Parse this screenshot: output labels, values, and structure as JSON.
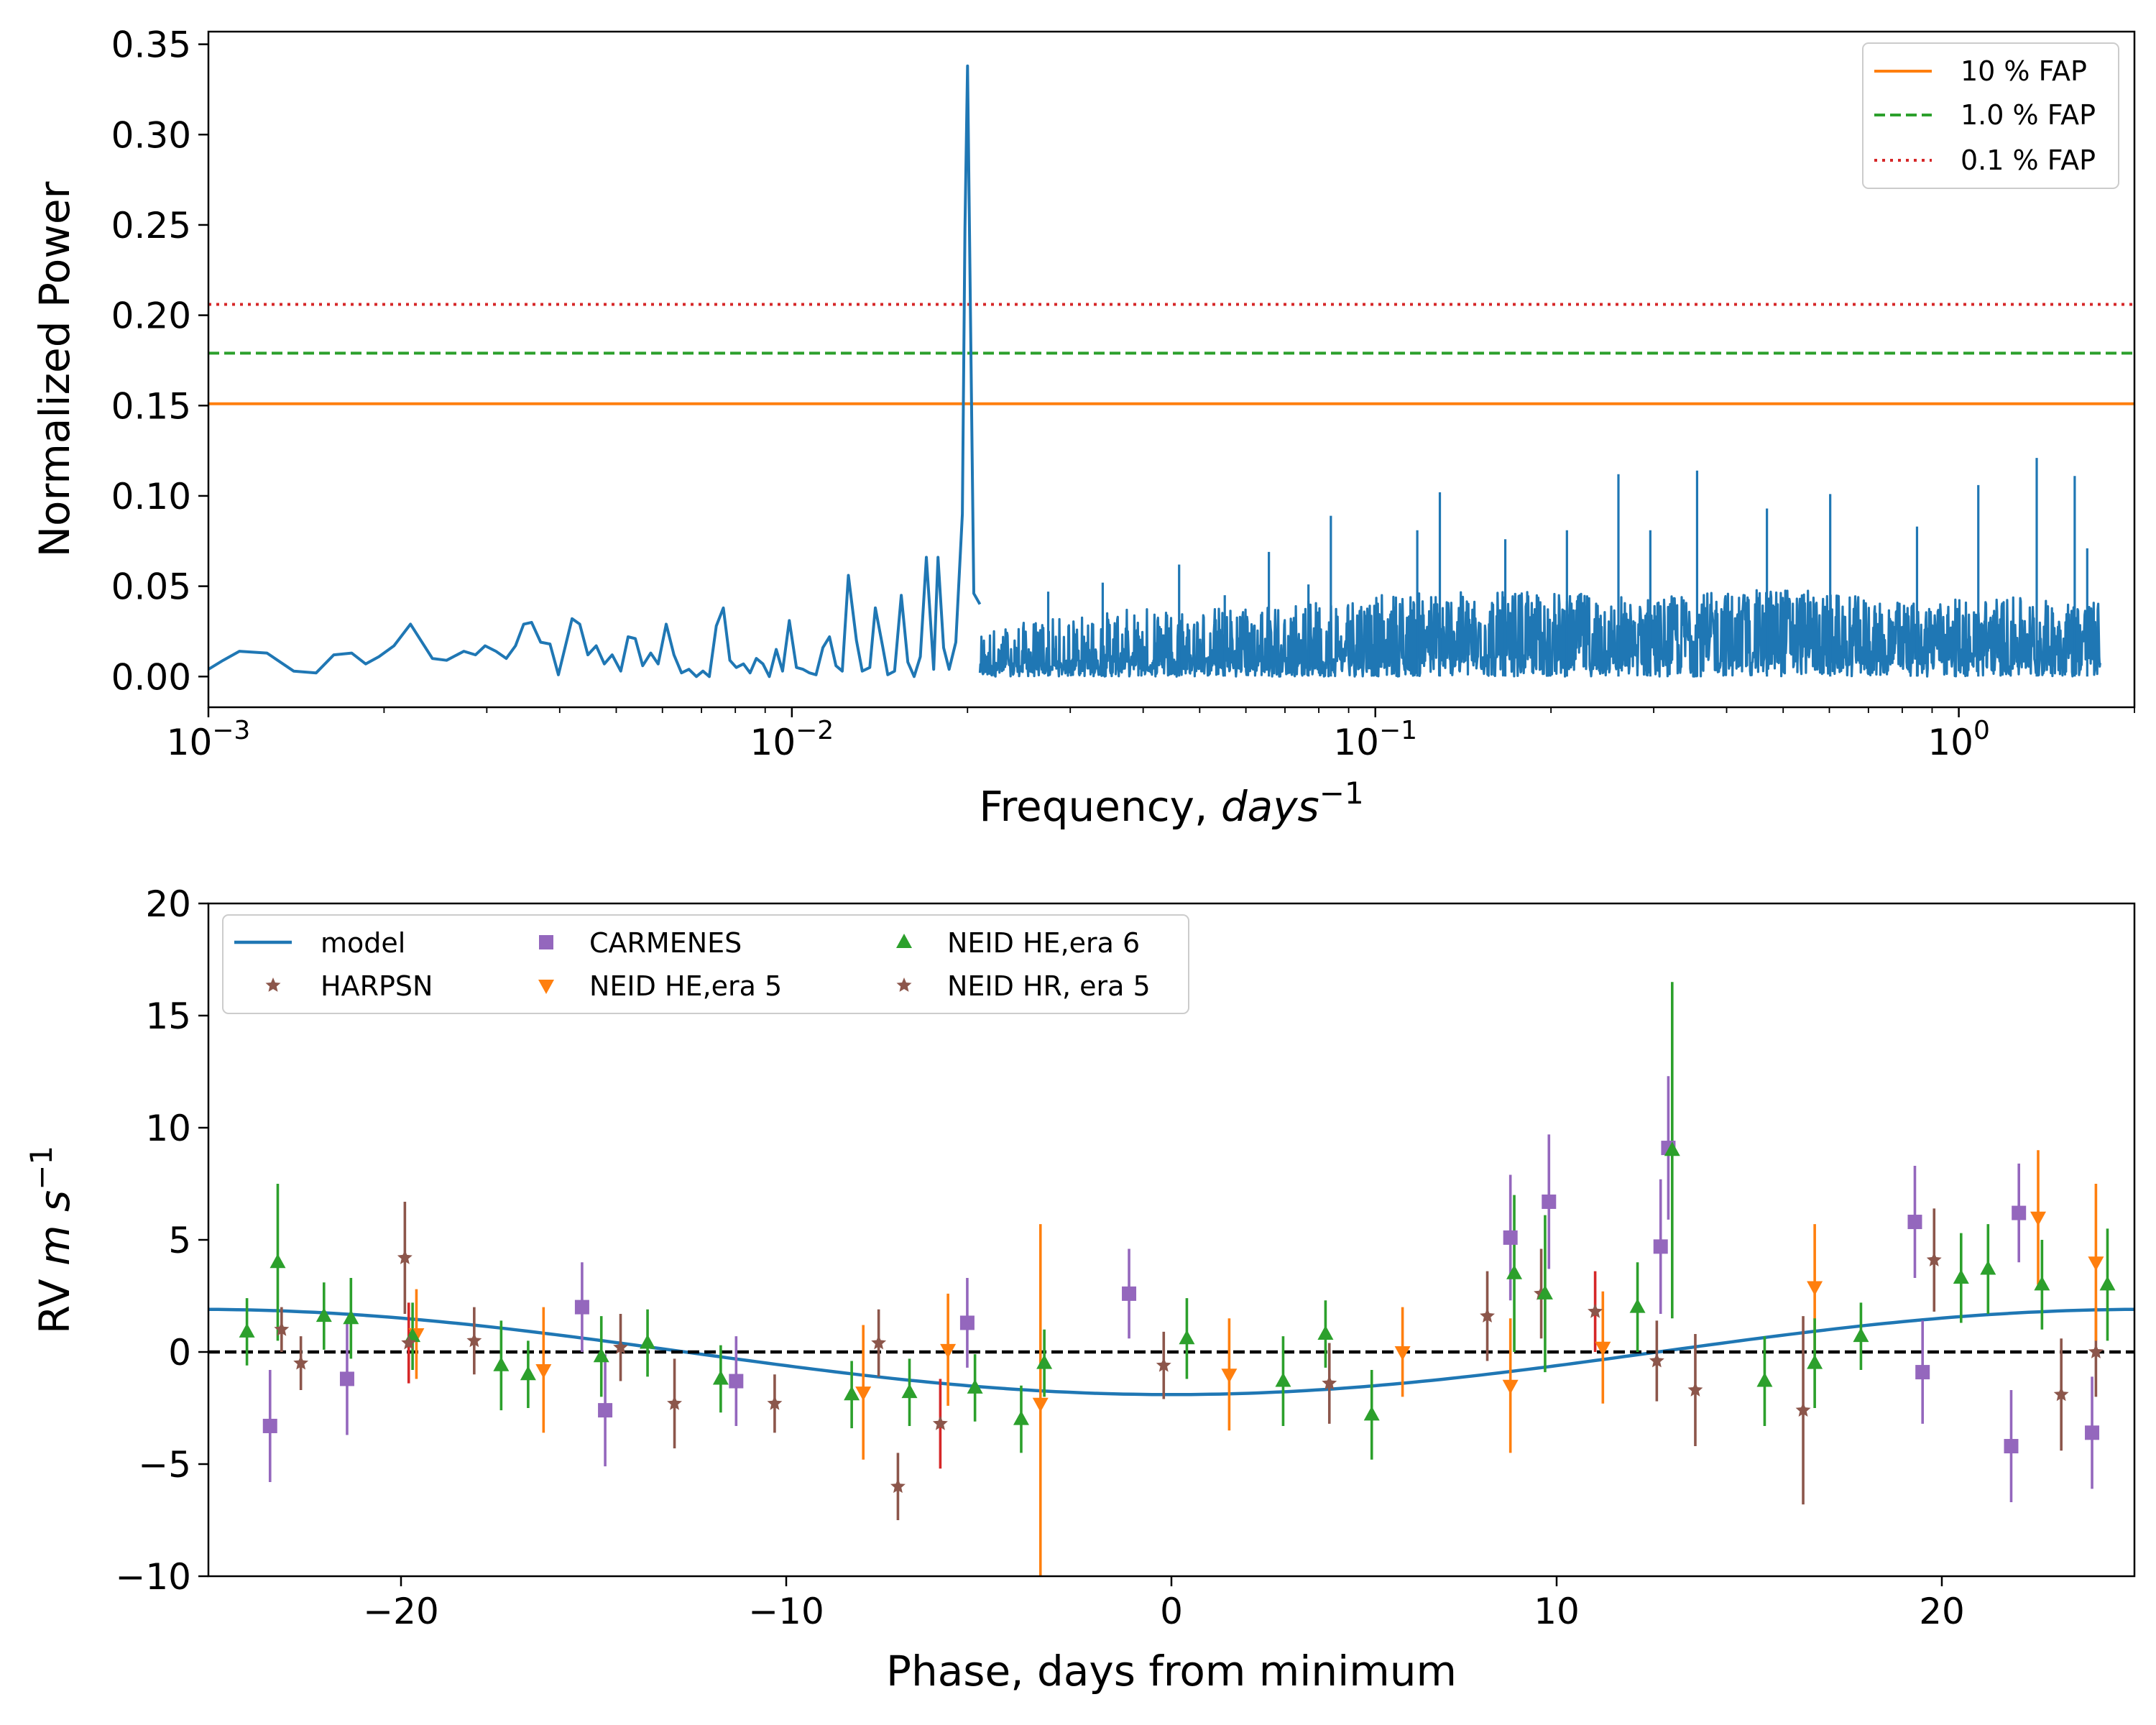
{
  "chart_data": [
    {
      "type": "line",
      "xscale": "log",
      "xlabel_text": "Frequency, ",
      "xlabel_var": "days",
      "xlabel_sup": "−1",
      "ylabel": "Normalized Power",
      "xlim": [
        0.001,
        2.0
      ],
      "ylim": [
        -0.017,
        0.357
      ],
      "xticks": [
        {
          "value": 0.001,
          "base": "10",
          "exp": "−3"
        },
        {
          "value": 0.01,
          "base": "10",
          "exp": "−2"
        },
        {
          "value": 0.1,
          "base": "10",
          "exp": "−1"
        },
        {
          "value": 1,
          "base": "10",
          "exp": "0"
        }
      ],
      "yticks": [
        {
          "value": 0.0,
          "label": "0.00"
        },
        {
          "value": 0.05,
          "label": "0.05"
        },
        {
          "value": 0.1,
          "label": "0.10"
        },
        {
          "value": 0.15,
          "label": "0.15"
        },
        {
          "value": 0.2,
          "label": "0.20"
        },
        {
          "value": 0.25,
          "label": "0.25"
        },
        {
          "value": 0.3,
          "label": "0.30"
        },
        {
          "value": 0.35,
          "label": "0.35"
        }
      ],
      "fap_lines": [
        {
          "name": "10 % FAP",
          "value": 0.151,
          "color": "#ff7f0e",
          "style": "solid"
        },
        {
          "name": "1.0 % FAP",
          "value": 0.179,
          "color": "#2ca02c",
          "style": "dashed"
        },
        {
          "name": "0.1 % FAP",
          "value": 0.206,
          "color": "#d62728",
          "style": "dotted"
        }
      ],
      "legend_position": "top-right",
      "series": [
        {
          "color": "#1f77b4",
          "points": [
            [
              0.001,
              0.004
            ],
            [
              0.00106,
              0.009
            ],
            [
              0.00113,
              0.014
            ],
            [
              0.00126,
              0.013
            ],
            [
              0.0014,
              0.003
            ],
            [
              0.00153,
              0.002
            ],
            [
              0.00164,
              0.012
            ],
            [
              0.00176,
              0.013
            ],
            [
              0.00186,
              0.007
            ],
            [
              0.00196,
              0.011
            ],
            [
              0.00208,
              0.017
            ],
            [
              0.00222,
              0.029
            ],
            [
              0.00242,
              0.01
            ],
            [
              0.00256,
              0.009
            ],
            [
              0.00274,
              0.014
            ],
            [
              0.00287,
              0.012
            ],
            [
              0.00298,
              0.017
            ],
            [
              0.00311,
              0.014
            ],
            [
              0.00324,
              0.01
            ],
            [
              0.00336,
              0.017
            ],
            [
              0.00347,
              0.029
            ],
            [
              0.00358,
              0.03
            ],
            [
              0.00371,
              0.019
            ],
            [
              0.00385,
              0.018
            ],
            [
              0.00398,
              0.001
            ],
            [
              0.0042,
              0.032
            ],
            [
              0.00433,
              0.029
            ],
            [
              0.00447,
              0.012
            ],
            [
              0.00462,
              0.017
            ],
            [
              0.00477,
              0.007
            ],
            [
              0.00492,
              0.012
            ],
            [
              0.00509,
              0.003
            ],
            [
              0.00524,
              0.022
            ],
            [
              0.00539,
              0.021
            ],
            [
              0.00555,
              0.006
            ],
            [
              0.00573,
              0.013
            ],
            [
              0.0059,
              0.007
            ],
            [
              0.00609,
              0.029
            ],
            [
              0.00628,
              0.012
            ],
            [
              0.00647,
              0.002
            ],
            [
              0.00666,
              0.004
            ],
            [
              0.00686,
              0.0
            ],
            [
              0.00704,
              0.003
            ],
            [
              0.00722,
              0.0
            ],
            [
              0.00742,
              0.028
            ],
            [
              0.00763,
              0.038
            ],
            [
              0.00783,
              0.009
            ],
            [
              0.00803,
              0.005
            ],
            [
              0.00826,
              0.007
            ],
            [
              0.00848,
              0.002
            ],
            [
              0.00869,
              0.01
            ],
            [
              0.00892,
              0.007
            ],
            [
              0.00915,
              0.0
            ],
            [
              0.0094,
              0.015
            ],
            [
              0.00964,
              0.003
            ],
            [
              0.0099,
              0.031
            ],
            [
              0.01018,
              0.005
            ],
            [
              0.01045,
              0.004
            ],
            [
              0.01072,
              0.002
            ],
            [
              0.011,
              0.001
            ],
            [
              0.0113,
              0.016
            ],
            [
              0.0116,
              0.022
            ],
            [
              0.0119,
              0.006
            ],
            [
              0.0122,
              0.003
            ],
            [
              0.0125,
              0.056
            ],
            [
              0.0129,
              0.02
            ],
            [
              0.0132,
              0.003
            ],
            [
              0.0136,
              0.005
            ],
            [
              0.0139,
              0.038
            ],
            [
              0.0143,
              0.017
            ],
            [
              0.0146,
              0.001
            ],
            [
              0.015,
              0.003
            ],
            [
              0.0154,
              0.045
            ],
            [
              0.0158,
              0.008
            ],
            [
              0.0162,
              0.0
            ],
            [
              0.0166,
              0.011
            ],
            [
              0.017,
              0.066
            ],
            [
              0.0175,
              0.004
            ],
            [
              0.0178,
              0.066
            ],
            [
              0.0182,
              0.016
            ],
            [
              0.0186,
              0.004
            ],
            [
              0.0191,
              0.019
            ],
            [
              0.0196,
              0.09
            ],
            [
              0.0198,
              0.248
            ],
            [
              0.02,
              0.338
            ],
            [
              0.0202,
              0.22
            ],
            [
              0.0205,
              0.046
            ],
            [
              0.021,
              0.04
            ]
          ]
        }
      ],
      "noise_envelope": [
        [
          0.021,
          0.045
        ],
        [
          0.025,
          0.055
        ],
        [
          0.03,
          0.06
        ],
        [
          0.04,
          0.07
        ],
        [
          0.06,
          0.07
        ],
        [
          0.09,
          0.08
        ],
        [
          0.12,
          0.085
        ],
        [
          0.2,
          0.085
        ],
        [
          0.3,
          0.08
        ],
        [
          0.5,
          0.09
        ],
        [
          0.8,
          0.075
        ],
        [
          1.2,
          0.08
        ],
        [
          1.75,
          0.075
        ]
      ],
      "noise_spikes": [
        [
          0.0275,
          0.047
        ],
        [
          0.0341,
          0.052
        ],
        [
          0.0461,
          0.062
        ],
        [
          0.0552,
          0.045
        ],
        [
          0.0657,
          0.069
        ],
        [
          0.0768,
          0.051
        ],
        [
          0.0839,
          0.089
        ],
        [
          0.118,
          0.081
        ],
        [
          0.129,
          0.102
        ],
        [
          0.167,
          0.076
        ],
        [
          0.213,
          0.081
        ],
        [
          0.261,
          0.112
        ],
        [
          0.296,
          0.081
        ],
        [
          0.356,
          0.114
        ],
        [
          0.469,
          0.093
        ],
        [
          0.602,
          0.101
        ],
        [
          0.848,
          0.083
        ],
        [
          1.08,
          0.106
        ],
        [
          1.36,
          0.121
        ],
        [
          1.58,
          0.111
        ],
        [
          1.66,
          0.071
        ]
      ]
    },
    {
      "type": "scatter",
      "xlabel": "Phase, days from minimum",
      "ylabel_text": "RV ",
      "ylabel_var": "m s",
      "ylabel_sup": "−1",
      "xlim": [
        -25,
        25
      ],
      "ylim": [
        -10,
        20
      ],
      "xticks": [
        {
          "value": -20,
          "label": "−20"
        },
        {
          "value": -10,
          "label": "−10"
        },
        {
          "value": 0,
          "label": "0"
        },
        {
          "value": 10,
          "label": "10"
        },
        {
          "value": 20,
          "label": "20"
        }
      ],
      "yticks": [
        {
          "value": -10,
          "label": "−10"
        },
        {
          "value": -5,
          "label": "−5"
        },
        {
          "value": 0,
          "label": "0"
        },
        {
          "value": 5,
          "label": "5"
        },
        {
          "value": 10,
          "label": "10"
        },
        {
          "value": 15,
          "label": "15"
        },
        {
          "value": 20,
          "label": "20"
        }
      ],
      "zero_line": 0,
      "legend_position": "top-left",
      "model": {
        "name": "model",
        "color": "#1f77b4",
        "amplitude": 1.9,
        "period_days": 50.5,
        "minimum_at": 0
      },
      "series": [
        {
          "name": "HARPSN",
          "marker": "star",
          "color": "#8c564b",
          "errcolor": "#8c564b",
          "points": [
            [
              -23.1,
              1.0,
              1.0
            ],
            [
              -22.6,
              -0.5,
              1.2
            ],
            [
              -19.9,
              4.2,
              2.5
            ],
            [
              -18.1,
              0.5,
              1.5
            ],
            [
              -14.3,
              0.2,
              1.5
            ],
            [
              -12.9,
              -2.3,
              2.0
            ],
            [
              -10.3,
              -2.3,
              1.3
            ],
            [
              -7.6,
              0.4,
              1.5
            ],
            [
              -7.1,
              -6.0,
              1.5
            ],
            [
              -0.2,
              -0.6,
              1.5
            ],
            [
              4.1,
              -1.4,
              1.8
            ],
            [
              8.2,
              1.6,
              2.0
            ],
            [
              9.6,
              2.6,
              2.0
            ],
            [
              12.6,
              -0.4,
              1.8
            ],
            [
              13.6,
              -1.7,
              2.5
            ],
            [
              16.4,
              -2.6,
              4.2
            ],
            [
              19.8,
              4.1,
              2.3
            ],
            [
              23.1,
              -1.9,
              2.5
            ],
            [
              24.0,
              0.0,
              2.0
            ]
          ]
        },
        {
          "name": "CARMENES",
          "marker": "square",
          "color": "#9467bd",
          "errcolor": "#9467bd",
          "points": [
            [
              -23.4,
              -3.3,
              2.5
            ],
            [
              -21.4,
              -1.2,
              2.5
            ],
            [
              -15.3,
              2.0,
              2.0
            ],
            [
              -14.7,
              -2.6,
              2.5
            ],
            [
              -11.3,
              -1.3,
              2.0
            ],
            [
              -5.3,
              1.3,
              2.0
            ],
            [
              -1.1,
              2.6,
              2.0
            ],
            [
              8.8,
              5.1,
              2.8
            ],
            [
              9.8,
              6.7,
              3.0
            ],
            [
              12.7,
              4.7,
              3.0
            ],
            [
              12.9,
              9.1,
              3.2
            ],
            [
              19.3,
              5.8,
              2.5
            ],
            [
              19.5,
              -0.9,
              2.3
            ],
            [
              21.8,
              -4.2,
              2.5
            ],
            [
              22.0,
              6.2,
              2.2
            ],
            [
              23.9,
              -3.6,
              2.5
            ]
          ]
        },
        {
          "name": "NEID HE,era 5",
          "marker": "triangle-down",
          "color": "#ff7f0e",
          "errcolor": "#ff7f0e",
          "points": [
            [
              -19.6,
              0.8,
              2.0
            ],
            [
              -16.3,
              -0.8,
              2.8
            ],
            [
              -8.0,
              -1.8,
              3.0
            ],
            [
              -5.8,
              0.1,
              2.5
            ],
            [
              -3.4,
              -2.3,
              8.0
            ],
            [
              1.5,
              -1.0,
              2.5
            ],
            [
              6.0,
              0.0,
              2.0
            ],
            [
              8.8,
              -1.5,
              3.0
            ],
            [
              11.2,
              0.2,
              2.5
            ],
            [
              16.7,
              2.9,
              2.8
            ],
            [
              22.5,
              6.0,
              3.0
            ],
            [
              24.0,
              4.0,
              3.5
            ]
          ]
        },
        {
          "name": "NEID HE,era 6",
          "marker": "triangle-up",
          "color": "#2ca02c",
          "errcolor": "#2ca02c",
          "points": [
            [
              -24.0,
              0.9,
              1.5
            ],
            [
              -23.2,
              4.0,
              3.5
            ],
            [
              -22.0,
              1.6,
              1.5
            ],
            [
              -21.3,
              1.5,
              1.8
            ],
            [
              -19.7,
              0.7,
              1.5
            ],
            [
              -17.4,
              -0.6,
              2.0
            ],
            [
              -16.7,
              -1.0,
              1.5
            ],
            [
              -14.8,
              -0.2,
              1.8
            ],
            [
              -13.6,
              0.4,
              1.5
            ],
            [
              -11.7,
              -1.2,
              1.5
            ],
            [
              -8.3,
              -1.9,
              1.5
            ],
            [
              -6.8,
              -1.8,
              1.5
            ],
            [
              -5.1,
              -1.6,
              1.5
            ],
            [
              -3.9,
              -3.0,
              1.5
            ],
            [
              -3.3,
              -0.5,
              1.5
            ],
            [
              0.4,
              0.6,
              1.8
            ],
            [
              2.9,
              -1.3,
              2.0
            ],
            [
              4.0,
              0.8,
              1.5
            ],
            [
              5.2,
              -2.8,
              2.0
            ],
            [
              8.9,
              3.5,
              3.5
            ],
            [
              9.7,
              2.6,
              3.5
            ],
            [
              12.1,
              2.0,
              2.0
            ],
            [
              13.0,
              9.0,
              7.5
            ],
            [
              15.4,
              -1.3,
              2.0
            ],
            [
              16.7,
              -0.5,
              2.0
            ],
            [
              17.9,
              0.7,
              1.5
            ],
            [
              20.5,
              3.3,
              2.0
            ],
            [
              21.2,
              3.7,
              2.0
            ],
            [
              22.6,
              3.0,
              2.0
            ],
            [
              24.3,
              3.0,
              2.5
            ]
          ]
        },
        {
          "name": "NEID HR, era 5",
          "marker": "star",
          "color": "#8c564b",
          "errcolor": "#d62728",
          "points": [
            [
              -19.8,
              0.4,
              1.8
            ],
            [
              -6.0,
              -3.2,
              2.0
            ],
            [
              11.0,
              1.8,
              1.8
            ]
          ]
        }
      ]
    }
  ]
}
